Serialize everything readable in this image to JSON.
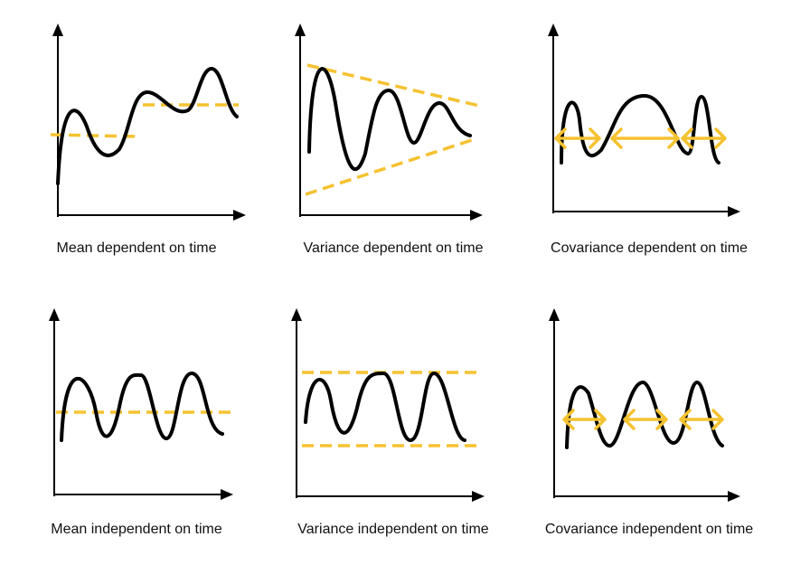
{
  "colors": {
    "curve": "#000000",
    "accent": "#F5C230",
    "axis": "#000000",
    "text": "#111111"
  },
  "panels": [
    {
      "id": "mean-dependent",
      "caption": "Mean dependent on time",
      "marker": "dashed-level-lines",
      "row": "dependent"
    },
    {
      "id": "variance-dependent",
      "caption": "Variance dependent on time",
      "marker": "converging-dashed-envelope",
      "row": "dependent"
    },
    {
      "id": "covariance-dependent",
      "caption": "Covariance dependent on time",
      "marker": "double-arrows-unequal",
      "row": "dependent"
    },
    {
      "id": "mean-independent",
      "caption": "Mean independent on time",
      "marker": "dashed-level-line",
      "row": "independent"
    },
    {
      "id": "variance-independent",
      "caption": "Variance independent on time",
      "marker": "parallel-dashed-envelope",
      "row": "independent"
    },
    {
      "id": "covariance-independent",
      "caption": "Covariance independent on time",
      "marker": "double-arrows-equal",
      "row": "independent"
    }
  ]
}
